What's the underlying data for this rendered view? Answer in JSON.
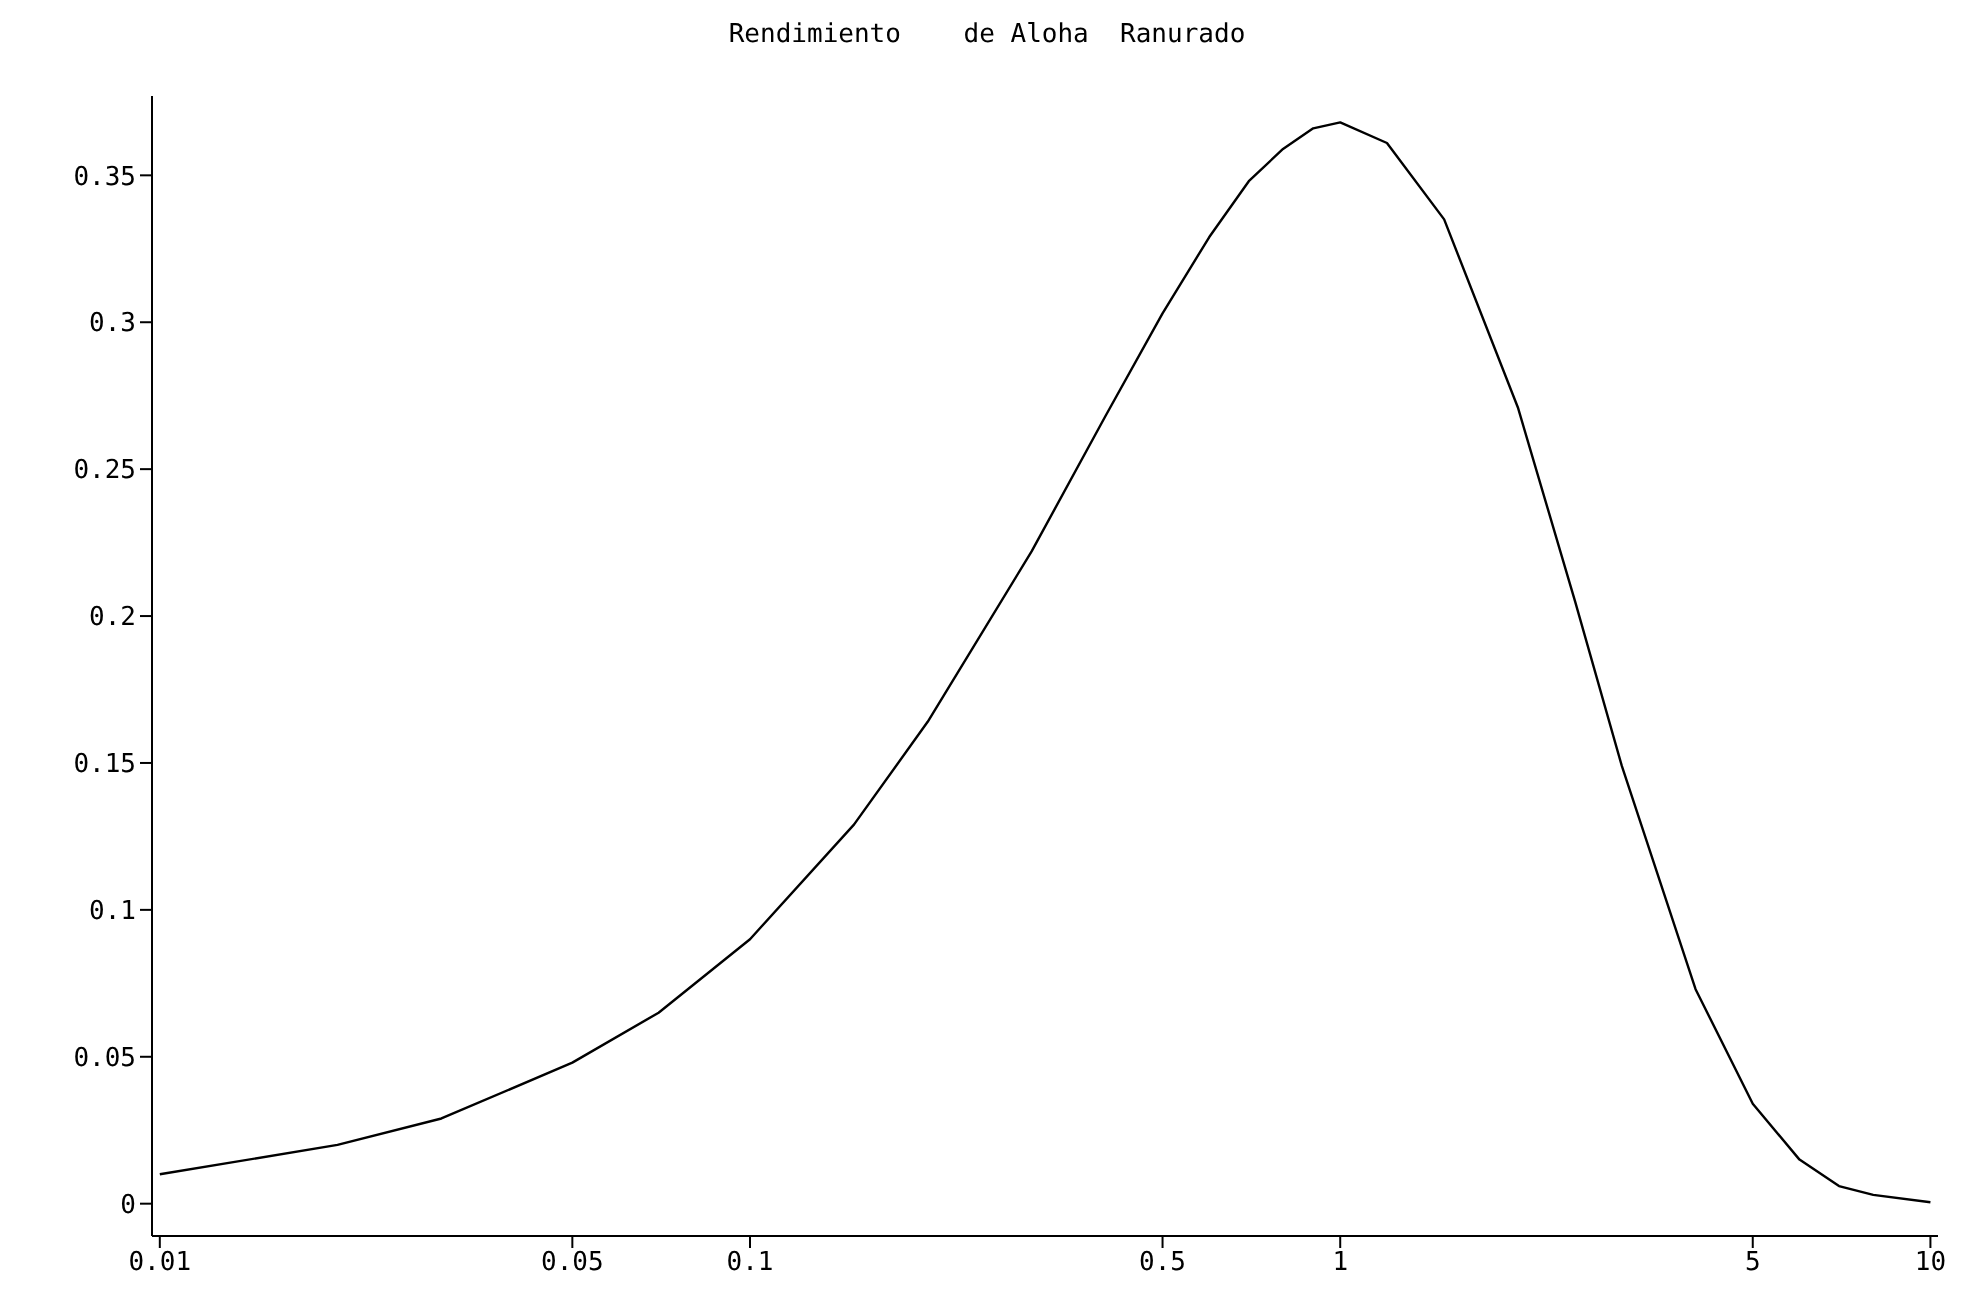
{
  "chart_data": {
    "type": "line",
    "title": "Rendimiento    de Aloha  Ranurado",
    "log": "x",
    "marker": "none",
    "line_style": "solid",
    "x": [
      0.01,
      0.02,
      0.03,
      0.05,
      0.07,
      0.1,
      0.15,
      0.2,
      0.3,
      0.4,
      0.5,
      0.6,
      0.7,
      0.8,
      0.9,
      1,
      1.2,
      1.5,
      2,
      2.5,
      3,
      4,
      5,
      6,
      7,
      8,
      10
    ],
    "series": [
      {
        "color": "#000000",
        "values": [
          0.01,
          0.02,
          0.029,
          0.048,
          0.065,
          0.09,
          0.129,
          0.164,
          0.222,
          0.268,
          0.303,
          0.329,
          0.348,
          0.359,
          0.366,
          0.368,
          0.361,
          0.335,
          0.271,
          0.205,
          0.149,
          0.073,
          0.034,
          0.015,
          0.006,
          0.003,
          0.0005
        ]
      }
    ],
    "xlim": [
      0.0097,
      10.3
    ],
    "xticks": [
      0.01,
      0.05,
      0.1,
      0.5,
      1,
      5,
      10
    ],
    "ylim": [
      -0.011,
      0.377
    ],
    "yticks": [
      0,
      0.05,
      0.1,
      0.15,
      0.2,
      0.25,
      0.3,
      0.35
    ]
  }
}
